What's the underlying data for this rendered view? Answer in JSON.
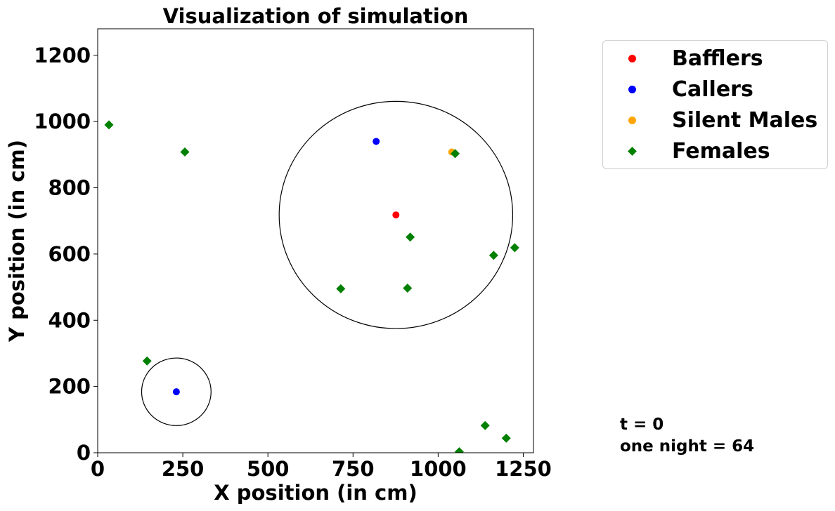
{
  "chart_data": {
    "type": "scatter",
    "title": "Visualization of simulation",
    "xlabel": "X position (in cm)",
    "ylabel": "Y position (in cm)",
    "xlim": [
      0,
      1280
    ],
    "ylim": [
      0,
      1280
    ],
    "xticks": [
      0,
      250,
      500,
      750,
      1000,
      1250
    ],
    "yticks": [
      0,
      200,
      400,
      600,
      800,
      1000,
      1200
    ],
    "grid": false,
    "legend_position": "outside-top-right",
    "series": [
      {
        "name": "Bafflers",
        "marker": "circle",
        "color": "#ff0000",
        "points": [
          [
            876,
            718
          ]
        ]
      },
      {
        "name": "Callers",
        "marker": "circle",
        "color": "#0000ff",
        "points": [
          [
            818,
            940
          ],
          [
            231,
            184
          ]
        ]
      },
      {
        "name": "Silent Males",
        "marker": "circle",
        "color": "#ffa500",
        "points": [
          [
            1040,
            908
          ]
        ]
      },
      {
        "name": "Females",
        "marker": "diamond",
        "color": "#008000",
        "points": [
          [
            33,
            990
          ],
          [
            256,
            908
          ],
          [
            1050,
            903
          ],
          [
            918,
            651
          ],
          [
            1163,
            596
          ],
          [
            1225,
            619
          ],
          [
            714,
            495
          ],
          [
            910,
            497
          ],
          [
            145,
            277
          ],
          [
            1138,
            82
          ],
          [
            1200,
            44
          ],
          [
            1062,
            3
          ]
        ]
      }
    ],
    "circles": [
      {
        "cx": 876,
        "cy": 718,
        "r": 343
      },
      {
        "cx": 231,
        "cy": 184,
        "r": 102
      }
    ],
    "annotations": [
      "t = 0",
      "one night = 64"
    ]
  }
}
